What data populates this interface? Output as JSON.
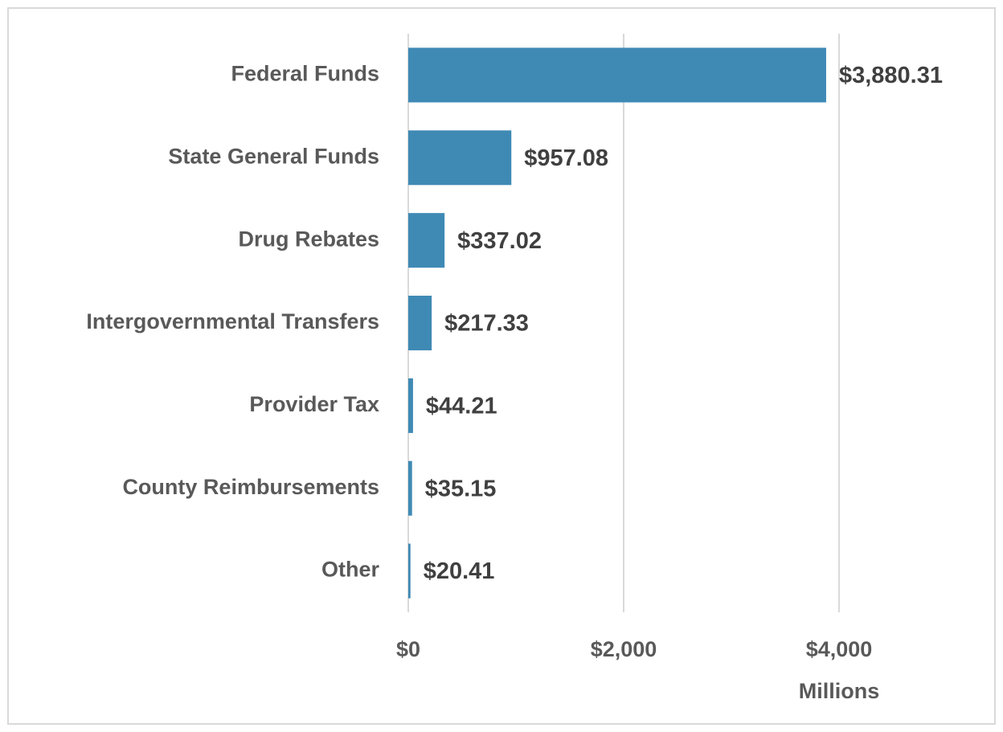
{
  "chart_data": {
    "type": "hbar",
    "categories": [
      "Federal Funds",
      "State General Funds",
      "Drug Rebates",
      "Intergovernmental Transfers",
      "Provider Tax",
      "County Reimbursements",
      "Other"
    ],
    "values": [
      3880.31,
      957.08,
      337.02,
      217.33,
      44.21,
      35.15,
      20.41
    ],
    "value_labels": [
      "$3,880.31",
      "$957.08",
      "$337.02",
      "$217.33",
      "$44.21",
      "$35.15",
      "$20.41"
    ],
    "color": "#3f8ab5",
    "xlim": [
      0,
      5000
    ],
    "xticks": [
      {
        "value": 0,
        "label": "$0"
      },
      {
        "value": 2000,
        "label": "$2,000"
      },
      {
        "value": 4000,
        "label": "$4,000"
      }
    ],
    "x_label": "Millions",
    "grid": true
  }
}
